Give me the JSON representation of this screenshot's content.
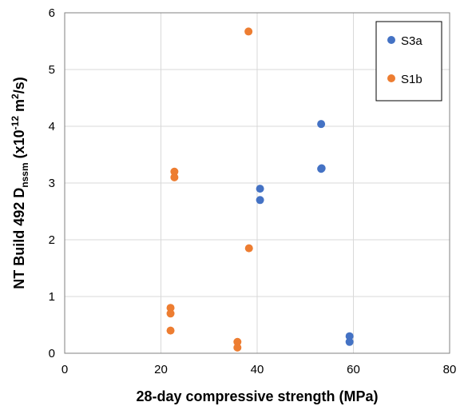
{
  "chart_data": {
    "type": "scatter",
    "title": "",
    "xlabel": "28-day compressive strength (MPa)",
    "ylabel": {
      "main": "NT Build 492 D",
      "subscript": "nssm",
      "unit_prefix": " (x10",
      "exponent": "-12",
      "unit_mid": " m",
      "unit_exp": "2",
      "unit_suffix": "/s)"
    },
    "xlim": [
      0,
      80
    ],
    "ylim": [
      0,
      6
    ],
    "xticks": [
      "0",
      "20",
      "40",
      "60",
      "80"
    ],
    "yticks": [
      "0",
      "1",
      "2",
      "3",
      "4",
      "5",
      "6"
    ],
    "grid": true,
    "legend_position": "top-right",
    "series": [
      {
        "name": "S3a",
        "color": "#4472C4",
        "points": [
          {
            "x": 53.3,
            "y": 4.04
          },
          {
            "x": 53.3,
            "y": 3.25
          },
          {
            "x": 53.4,
            "y": 3.26
          },
          {
            "x": 40.6,
            "y": 2.9
          },
          {
            "x": 40.6,
            "y": 2.7
          },
          {
            "x": 59.2,
            "y": 0.3
          },
          {
            "x": 59.2,
            "y": 0.2
          }
        ]
      },
      {
        "name": "S1b",
        "color": "#ED7D31",
        "points": [
          {
            "x": 38.2,
            "y": 5.67
          },
          {
            "x": 22.8,
            "y": 3.2
          },
          {
            "x": 22.8,
            "y": 3.1
          },
          {
            "x": 38.3,
            "y": 1.85
          },
          {
            "x": 22.0,
            "y": 0.8
          },
          {
            "x": 22.0,
            "y": 0.7
          },
          {
            "x": 22.0,
            "y": 0.4
          },
          {
            "x": 35.9,
            "y": 0.2
          },
          {
            "x": 35.9,
            "y": 0.1
          }
        ]
      }
    ]
  }
}
